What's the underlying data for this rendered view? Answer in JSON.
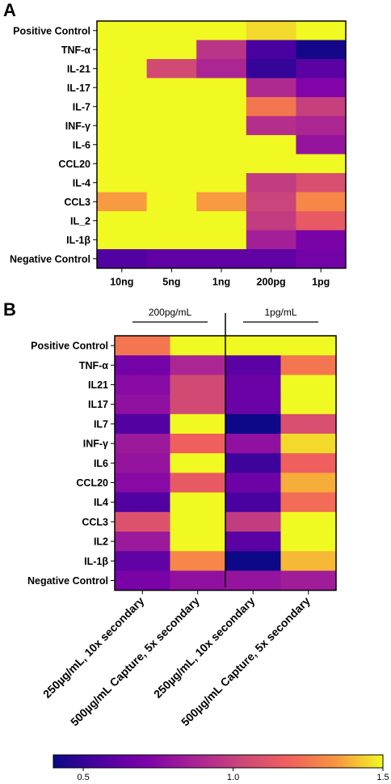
{
  "chart_data": [
    {
      "panel": "A",
      "type": "heatmap",
      "rows": [
        "Positive Control",
        "TNF-α",
        "IL-21",
        "IL-17",
        "IL-7",
        "INF-γ",
        "IL-6",
        "CCL20",
        "IL-4",
        "CCL3",
        "IL_2",
        "IL-1β",
        "Negative Control"
      ],
      "columns": [
        "10ng",
        "5ng",
        "1ng",
        "200pg",
        "1pg"
      ],
      "values": [
        [
          1.5,
          1.5,
          1.5,
          1.45,
          1.5
        ],
        [
          1.5,
          1.5,
          0.95,
          0.55,
          0.42
        ],
        [
          1.5,
          1.05,
          0.88,
          0.5,
          0.6
        ],
        [
          1.5,
          1.5,
          1.5,
          0.9,
          0.72
        ],
        [
          1.5,
          1.5,
          1.5,
          1.25,
          1.0
        ],
        [
          1.5,
          1.5,
          1.5,
          0.92,
          0.88
        ],
        [
          1.5,
          1.5,
          1.5,
          1.5,
          0.8
        ],
        [
          1.5,
          1.5,
          1.5,
          1.5,
          1.5
        ],
        [
          1.5,
          1.5,
          1.5,
          0.98,
          1.08
        ],
        [
          1.35,
          1.5,
          1.35,
          1.02,
          1.3
        ],
        [
          1.5,
          1.5,
          1.5,
          0.98,
          1.15
        ],
        [
          1.5,
          1.5,
          1.5,
          0.85,
          0.7
        ],
        [
          0.58,
          0.62,
          0.62,
          0.62,
          0.68
        ]
      ],
      "scale": [
        0.4,
        1.5
      ]
    },
    {
      "panel": "B",
      "type": "heatmap",
      "rows": [
        "Positive Control",
        "TNF-α",
        "IL21",
        "IL17",
        "IL7",
        "INF-γ",
        "IL6",
        "CCL20",
        "IL4",
        "CCL3",
        "IL2",
        "IL-1β",
        "Negative Control"
      ],
      "columns": [
        "250µg/mL, 10x secondary",
        "500µg/mL Capture, 5x secondary",
        "250µg/mL, 10x secondary",
        "500µg/mL Capture, 5x secondary"
      ],
      "groups": [
        {
          "label": "200pg/mL",
          "columns": [
            0,
            1
          ]
        },
        {
          "label": "1pg/mL",
          "columns": [
            2,
            3
          ]
        }
      ],
      "values": [
        [
          1.25,
          1.5,
          1.5,
          1.5
        ],
        [
          0.68,
          0.88,
          0.6,
          1.25
        ],
        [
          0.75,
          1.05,
          0.65,
          1.5
        ],
        [
          0.78,
          1.05,
          0.65,
          1.5
        ],
        [
          0.58,
          1.5,
          0.4,
          1.08
        ],
        [
          0.82,
          1.18,
          0.78,
          1.45
        ],
        [
          0.8,
          1.5,
          0.52,
          1.18
        ],
        [
          0.75,
          1.15,
          0.66,
          1.38
        ],
        [
          0.58,
          1.5,
          0.55,
          1.22
        ],
        [
          1.1,
          1.5,
          0.98,
          1.5
        ],
        [
          0.82,
          1.5,
          0.6,
          1.5
        ],
        [
          0.62,
          1.3,
          0.4,
          1.4
        ],
        [
          0.7,
          0.78,
          0.8,
          0.84
        ]
      ],
      "colorbar": {
        "ticks": [
          0.5,
          1.0,
          1.5
        ],
        "min": 0.4,
        "max": 1.5
      }
    }
  ]
}
